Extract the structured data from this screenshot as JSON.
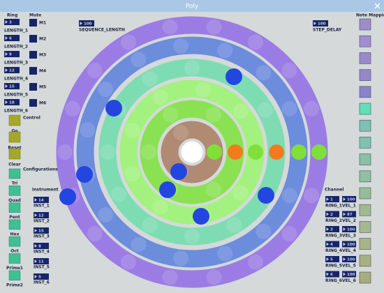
{
  "window": {
    "title": "Poly"
  },
  "ring_header": "Ring",
  "mute_header": "Mute",
  "rings": [
    {
      "length": 3,
      "label": "LENGTH_1",
      "mute": "M1"
    },
    {
      "length": 6,
      "label": "LENGTH_2",
      "mute": "M2"
    },
    {
      "length": 9,
      "label": "LENGTH_3",
      "mute": "M3"
    },
    {
      "length": 12,
      "label": "LENGTH_4",
      "mute": "M4"
    },
    {
      "length": 15,
      "label": "LENGTH_5",
      "mute": "M5"
    },
    {
      "length": 18,
      "label": "LENGTH_6",
      "mute": "M6"
    }
  ],
  "controls": {
    "header": "Control",
    "buttons": [
      "Go",
      "Reset",
      "Clear"
    ]
  },
  "configurations": {
    "header": "Configurations",
    "buttons": [
      "Tri",
      "Quad",
      "Pent",
      "Hex",
      "Oct",
      "Prime1",
      "Prime2"
    ]
  },
  "instrument": {
    "header": "Instrument",
    "items": [
      {
        "value": 14,
        "label": "INST_1"
      },
      {
        "value": 12,
        "label": "INST_2"
      },
      {
        "value": 15,
        "label": "INST_3"
      },
      {
        "value": 8,
        "label": "INST_4"
      },
      {
        "value": 11,
        "label": "INST_5"
      },
      {
        "value": 5,
        "label": "INST_6"
      }
    ]
  },
  "sequence_length": {
    "value": 100,
    "label": "SEQUENCE_LENGTH"
  },
  "step_delay": {
    "value": 100,
    "label": "STEP_DELAY"
  },
  "note_mapping": {
    "header": "Note Mapping",
    "colors": [
      "#9c8dca",
      "#a08fd0",
      "#9a8acb",
      "#9487cc",
      "#8a83c8",
      "#5fe0b8",
      "#7cc2b2",
      "#80c2ae",
      "#88c0a8",
      "#90c0a2",
      "#98bc98",
      "#a0b992",
      "#a6b890",
      "#a8b488",
      "#a8b182",
      "#a8ad80"
    ]
  },
  "channel": {
    "header": "Channel",
    "items": [
      {
        "ring": 1,
        "ring_label": "RING_1",
        "vel": 100,
        "vel_label": "VEL_1"
      },
      {
        "ring": 2,
        "ring_label": "RING_2",
        "vel": 87,
        "vel_label": "VEL_2"
      },
      {
        "ring": 3,
        "ring_label": "RING_3",
        "vel": 100,
        "vel_label": "VEL_3"
      },
      {
        "ring": 4,
        "ring_label": "RING_4",
        "vel": 100,
        "vel_label": "VEL_4"
      },
      {
        "ring": 5,
        "ring_label": "RING_5",
        "vel": 100,
        "vel_label": "VEL_5"
      },
      {
        "ring": 6,
        "ring_label": "RING_6",
        "vel": 100,
        "vel_label": "VEL_6"
      }
    ]
  }
}
